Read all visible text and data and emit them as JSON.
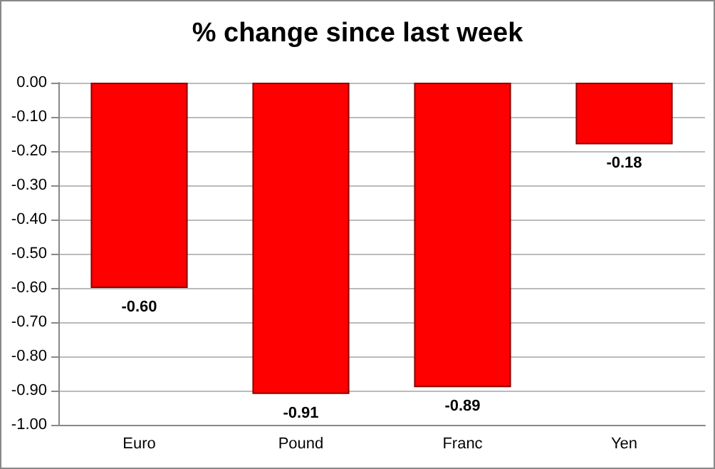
{
  "chart_data": {
    "type": "bar",
    "title": "% change since last week",
    "categories": [
      "Euro",
      "Pound",
      "Franc",
      "Yen"
    ],
    "values": [
      -0.6,
      -0.91,
      -0.89,
      -0.18
    ],
    "value_labels": [
      "-0.60",
      "-0.91",
      "-0.89",
      "-0.18"
    ],
    "color": "#ff0000",
    "ylim": [
      -1,
      0
    ],
    "yticks": [
      {
        "value": 0,
        "label": "0.00"
      },
      {
        "value": -0.1,
        "label": "-0.10"
      },
      {
        "value": -0.2,
        "label": "-0.20"
      },
      {
        "value": -0.3,
        "label": "-0.30"
      },
      {
        "value": -0.4,
        "label": "-0.40"
      },
      {
        "value": -0.5,
        "label": "-0.50"
      },
      {
        "value": -0.6,
        "label": "-0.60"
      },
      {
        "value": -0.7,
        "label": "-0.70"
      },
      {
        "value": -0.8,
        "label": "-0.80"
      },
      {
        "value": -0.9,
        "label": "-0.90"
      },
      {
        "value": -1,
        "label": "-1.00"
      }
    ],
    "grid": "y"
  }
}
